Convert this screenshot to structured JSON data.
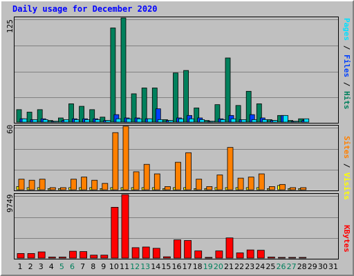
{
  "title": "Daily usage for December 2020",
  "colors": {
    "background": "#c0c0c0",
    "title": "#0000ff",
    "hits": "#00805c",
    "files": "#0040ff",
    "pages": "#00e0ff",
    "visits": "#ffff00",
    "sites": "#ff8000",
    "kbytes": "#ff0000",
    "weekday_label": "#000000",
    "weekend_label": "#00805c"
  },
  "axis_maxima": {
    "top": "125",
    "middle": "60",
    "bottom": "9749"
  },
  "right_labels": {
    "top": [
      {
        "text": "Pages",
        "color": "#00e0ff"
      },
      {
        "text": " / ",
        "color": "#000000"
      },
      {
        "text": "Files",
        "color": "#0040ff"
      },
      {
        "text": " / ",
        "color": "#000000"
      },
      {
        "text": "Hits",
        "color": "#00805c"
      }
    ],
    "middle": [
      {
        "text": "Sites",
        "color": "#ff8000"
      },
      {
        "text": " / ",
        "color": "#000000"
      },
      {
        "text": "Visits",
        "color": "#ffff00"
      }
    ],
    "bottom": [
      {
        "text": "KBytes",
        "color": "#ff0000"
      }
    ]
  },
  "chart_data": {
    "type": "bar",
    "categories": [
      "1",
      "2",
      "3",
      "4",
      "5",
      "6",
      "7",
      "8",
      "9",
      "10",
      "11",
      "12",
      "13",
      "14",
      "15",
      "16",
      "17",
      "18",
      "19",
      "20",
      "21",
      "22",
      "23",
      "24",
      "25",
      "26",
      "27",
      "28",
      "29",
      "30",
      "31"
    ],
    "weekend_days": [
      "5",
      "6",
      "12",
      "13",
      "19",
      "20",
      "26",
      "27"
    ],
    "panels": [
      {
        "ylim": [
          0,
          125
        ],
        "series": [
          {
            "name": "Hits",
            "color": "#00805c",
            "values": [
              15,
              12,
              15,
              2,
              5,
              22,
              19,
              15,
              6,
              113,
              125,
              34,
              41,
              41,
              3,
              59,
              62,
              17,
              2,
              21,
              77,
              20,
              37,
              22,
              3,
              8,
              2,
              4,
              0,
              0,
              0
            ]
          },
          {
            "name": "Files",
            "color": "#0040ff",
            "values": [
              4,
              3,
              4,
              1,
              2,
              4,
              4,
              4,
              2,
              9,
              5,
              5,
              4,
              16,
              2,
              5,
              8,
              5,
              1,
              4,
              8,
              3,
              9,
              5,
              2,
              8,
              1,
              2,
              0,
              0,
              0
            ]
          },
          {
            "name": "Pages",
            "color": "#00e0ff",
            "values": [
              4,
              3,
              3,
              1,
              3,
              3,
              3,
              3,
              2,
              4,
              4,
              4,
              4,
              3,
              2,
              4,
              4,
              3,
              1,
              3,
              4,
              3,
              3,
              3,
              2,
              8,
              1,
              4,
              0,
              0,
              0
            ]
          }
        ]
      },
      {
        "ylim": [
          0,
          60
        ],
        "series": [
          {
            "name": "Visits",
            "color": "#ffff00",
            "values": [
              3,
              2,
              2,
              1,
              1,
              2,
              2,
              2,
              1,
              2,
              2,
              2,
              2,
              2,
              1,
              2,
              2,
              1,
              1,
              2,
              2,
              2,
              2,
              2,
              1,
              4,
              1,
              1,
              0,
              0,
              0
            ]
          },
          {
            "name": "Sites",
            "color": "#ff8000",
            "values": [
              10,
              9,
              10,
              2,
              2,
              10,
              12,
              9,
              6,
              54,
              60,
              17,
              24,
              15,
              3,
              26,
              35,
              10,
              3,
              14,
              40,
              11,
              12,
              15,
              3,
              5,
              2,
              2,
              0,
              0,
              0
            ]
          }
        ]
      },
      {
        "ylim": [
          0,
          9749
        ],
        "series": [
          {
            "name": "KBytes",
            "color": "#ff0000",
            "values": [
              700,
              700,
              950,
              150,
              150,
              1050,
              1000,
              450,
              450,
              7800,
              9749,
              1600,
              1700,
              1500,
              200,
              2800,
              2700,
              1100,
              100,
              1100,
              3100,
              800,
              1250,
              1200,
              150,
              100,
              50,
              60,
              0,
              0,
              0
            ]
          }
        ]
      }
    ]
  }
}
